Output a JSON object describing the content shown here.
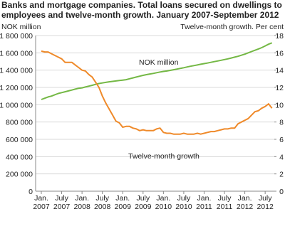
{
  "chart_data": {
    "type": "line",
    "title": [
      "Banks and mortgage companies. Total loans secured on dwellings to",
      "employees and twelve-month growth. January 2007-September 2012"
    ],
    "ylabel": "NOK million",
    "y2label": "Twelve-month growth. Per cent",
    "categories": [
      "Jan. 2007",
      null,
      null,
      null,
      null,
      null,
      "July 2007",
      null,
      null,
      null,
      null,
      null,
      "Jan. 2008",
      null,
      null,
      null,
      null,
      null,
      "July 2008",
      null,
      null,
      null,
      null,
      null,
      "Jan. 2009",
      null,
      null,
      null,
      null,
      null,
      "July 2009",
      null,
      null,
      null,
      null,
      null,
      "Jan. 2010",
      null,
      null,
      null,
      null,
      null,
      "July 2010",
      null,
      null,
      null,
      null,
      null,
      "Jan. 2011",
      null,
      null,
      null,
      null,
      null,
      "July 2011",
      null,
      null,
      null,
      null,
      null,
      "Jan. 2012",
      null,
      null,
      null,
      null,
      null,
      "July 2012",
      null,
      null
    ],
    "ylim": [
      0,
      1800000
    ],
    "yticks": [
      0,
      {
        "value": 200000,
        "label": "200 000"
      },
      {
        "value": 400000,
        "label": "400 000"
      },
      {
        "value": 600000,
        "label": "600 000"
      },
      {
        "value": 800000,
        "label": "800 000"
      },
      {
        "value": 1000000,
        "label": "1 000 000"
      },
      {
        "value": 1200000,
        "label": "1 200 000"
      },
      {
        "value": 1400000,
        "label": "1 400 000"
      },
      {
        "value": 1600000,
        "label": "1 600 000"
      },
      {
        "value": 1800000,
        "label": "1 800 000"
      }
    ],
    "y2lim": [
      0,
      18
    ],
    "y2ticks": [
      0,
      2,
      4,
      6,
      8,
      10,
      12,
      14,
      16,
      18
    ],
    "grid": true,
    "series": [
      {
        "name": "NOK million",
        "color": "#74b845",
        "values": [
          1060000,
          1075000,
          1090000,
          1100000,
          1115000,
          1130000,
          1140000,
          1150000,
          1160000,
          1170000,
          1180000,
          1190000,
          1195000,
          1205000,
          1215000,
          1225000,
          1235000,
          1245000,
          1252000,
          1258000,
          1265000,
          1270000,
          1275000,
          1280000,
          1285000,
          1290000,
          1300000,
          1310000,
          1320000,
          1330000,
          1340000,
          1348000,
          1355000,
          1362000,
          1370000,
          1378000,
          1385000,
          1390000,
          1397000,
          1405000,
          1412000,
          1420000,
          1428000,
          1437000,
          1445000,
          1452000,
          1460000,
          1468000,
          1475000,
          1482000,
          1490000,
          1498000,
          1506000,
          1514000,
          1522000,
          1530000,
          1540000,
          1550000,
          1560000,
          1572000,
          1585000,
          1600000,
          1615000,
          1630000,
          1645000,
          1660000,
          1680000,
          1700000,
          1715000
        ]
      },
      {
        "name": "Twelve-month growth",
        "color": "#ef8a2a",
        "axis": "y2",
        "values": [
          16.2,
          16.1,
          16.1,
          15.9,
          15.7,
          15.5,
          15.3,
          14.9,
          14.9,
          14.9,
          14.6,
          14.3,
          14.0,
          13.9,
          13.5,
          13.2,
          12.6,
          12.0,
          11.0,
          10.2,
          9.5,
          8.8,
          8.1,
          7.9,
          7.4,
          7.5,
          7.5,
          7.3,
          7.2,
          7.0,
          7.1,
          7.0,
          7.0,
          7.0,
          7.2,
          7.3,
          6.8,
          6.7,
          6.7,
          6.6,
          6.6,
          6.6,
          6.7,
          6.6,
          6.6,
          6.6,
          6.7,
          6.6,
          6.7,
          6.8,
          6.9,
          6.9,
          7.0,
          7.1,
          7.2,
          7.2,
          7.3,
          7.3,
          7.8,
          8.0,
          8.2,
          8.4,
          8.8,
          9.2,
          9.3,
          9.6,
          9.8,
          10.1,
          9.6
        ]
      }
    ]
  }
}
